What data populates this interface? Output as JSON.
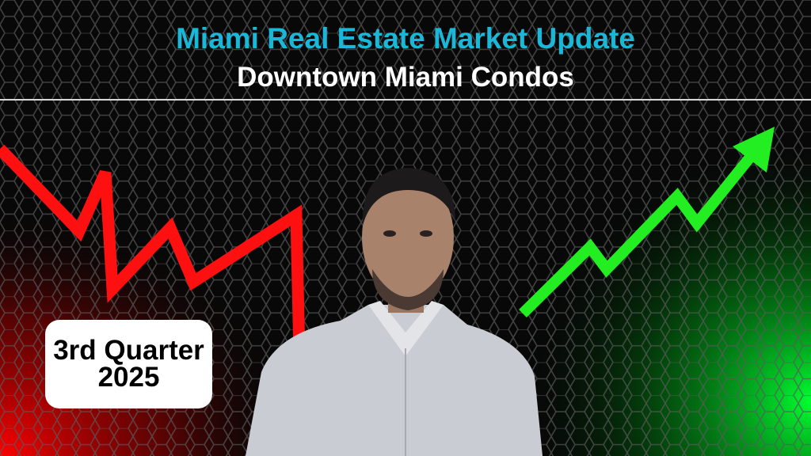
{
  "header": {
    "title": "Miami Real Estate Market Update",
    "subtitle": "Downtown Miami Condos"
  },
  "badge": {
    "line1": "3rd Quarter",
    "line2": "2025"
  },
  "colors": {
    "title": "#1ab8d8",
    "down_trend": "#ff1010",
    "up_trend": "#22ee22",
    "background": "#0a0a0a"
  },
  "icons": [
    "down-trend-line-icon",
    "up-trend-arrow-icon"
  ]
}
